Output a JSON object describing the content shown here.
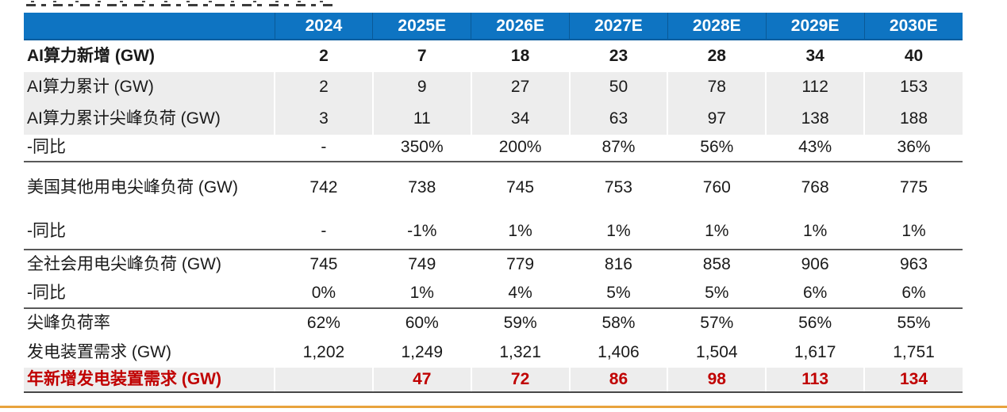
{
  "colors": {
    "header_bg": "#0E74C2",
    "header_text": "#FFFFFF",
    "row_alt_bg": "#EDEDED",
    "highlight_red": "#C00000",
    "divider_dark": "#595959",
    "bottom_accent_orange": "#E8A33D",
    "body_text": "#1A1A1A"
  },
  "table": {
    "header": [
      "",
      "2024",
      "2025E",
      "2026E",
      "2027E",
      "2028E",
      "2029E",
      "2030E"
    ],
    "rows": [
      {
        "label": "AI算力新增 (GW)",
        "values": [
          "2",
          "7",
          "18",
          "23",
          "28",
          "34",
          "40"
        ],
        "bold": true,
        "bg": "white",
        "color": "black",
        "divider_after": false
      },
      {
        "label": "AI算力累计 (GW)",
        "values": [
          "2",
          "9",
          "27",
          "50",
          "78",
          "112",
          "153"
        ],
        "bold": false,
        "bg": "gray",
        "color": "black",
        "divider_after": false
      },
      {
        "label": "AI算力累计尖峰负荷 (GW)",
        "values": [
          "3",
          "11",
          "34",
          "63",
          "97",
          "138",
          "188"
        ],
        "bold": false,
        "bg": "gray",
        "color": "black",
        "divider_after": false
      },
      {
        "label": "-同比",
        "values": [
          "-",
          "350%",
          "200%",
          "87%",
          "56%",
          "43%",
          "36%"
        ],
        "bold": false,
        "bg": "white",
        "color": "black",
        "divider_after": true
      },
      {
        "label": "美国其他用电尖峰负荷 (GW)",
        "values": [
          "742",
          "738",
          "745",
          "753",
          "760",
          "768",
          "775"
        ],
        "bold": false,
        "bg": "white",
        "color": "black",
        "divider_after": false
      },
      {
        "label": "-同比",
        "values": [
          "-",
          "-1%",
          "1%",
          "1%",
          "1%",
          "1%",
          "1%"
        ],
        "bold": false,
        "bg": "white",
        "color": "black",
        "divider_after": true
      },
      {
        "label": "全社会用电尖峰负荷 (GW)",
        "values": [
          "745",
          "749",
          "779",
          "816",
          "858",
          "906",
          "963"
        ],
        "bold": false,
        "bg": "white",
        "color": "black",
        "divider_after": false
      },
      {
        "label": "-同比",
        "values": [
          "0%",
          "1%",
          "4%",
          "5%",
          "5%",
          "6%",
          "6%"
        ],
        "bold": false,
        "bg": "white",
        "color": "black",
        "divider_after": true
      },
      {
        "label": "尖峰负荷率",
        "values": [
          "62%",
          "60%",
          "59%",
          "58%",
          "57%",
          "56%",
          "55%"
        ],
        "bold": false,
        "bg": "white",
        "color": "black",
        "divider_after": false
      },
      {
        "label": "发电装置需求 (GW)",
        "values": [
          "1,202",
          "1,249",
          "1,321",
          "1,406",
          "1,504",
          "1,617",
          "1,751"
        ],
        "bold": false,
        "bg": "white",
        "color": "black",
        "divider_after": false
      },
      {
        "label": "年新增发电装置需求 (GW)",
        "values": [
          "",
          "47",
          "72",
          "86",
          "98",
          "113",
          "134"
        ],
        "bold": true,
        "bg": "gray",
        "color": "red",
        "divider_after": true
      }
    ]
  }
}
